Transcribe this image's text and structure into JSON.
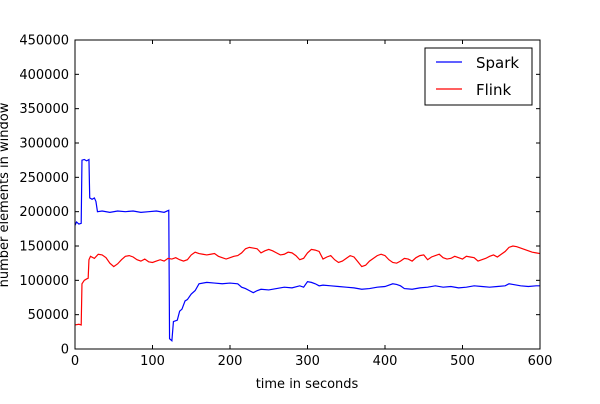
{
  "chart_data": {
    "type": "line",
    "title": "",
    "xlabel": "time in seconds",
    "ylabel": "number elements in window",
    "xlim": [
      0,
      600
    ],
    "ylim": [
      0,
      450000
    ],
    "xticks": [
      0,
      100,
      200,
      300,
      400,
      500,
      600
    ],
    "yticks": [
      0,
      50000,
      100000,
      150000,
      200000,
      250000,
      300000,
      350000,
      400000,
      450000
    ],
    "grid": false,
    "legend_position": "top-right",
    "series": [
      {
        "name": "Spark",
        "color": "#0000ff",
        "points": [
          [
            0,
            180000
          ],
          [
            2,
            185000
          ],
          [
            5,
            182000
          ],
          [
            8,
            183000
          ],
          [
            9,
            275000
          ],
          [
            12,
            276000
          ],
          [
            15,
            274000
          ],
          [
            18,
            276000
          ],
          [
            19,
            220000
          ],
          [
            22,
            218000
          ],
          [
            25,
            220000
          ],
          [
            27,
            215000
          ],
          [
            29,
            200000
          ],
          [
            35,
            201000
          ],
          [
            45,
            199000
          ],
          [
            55,
            201000
          ],
          [
            65,
            200000
          ],
          [
            75,
            201000
          ],
          [
            85,
            199000
          ],
          [
            95,
            200000
          ],
          [
            105,
            201000
          ],
          [
            115,
            199000
          ],
          [
            121,
            202000
          ],
          [
            122,
            15000
          ],
          [
            125,
            12000
          ],
          [
            127,
            40000
          ],
          [
            132,
            42000
          ],
          [
            135,
            55000
          ],
          [
            138,
            58000
          ],
          [
            142,
            70000
          ],
          [
            145,
            72000
          ],
          [
            150,
            80000
          ],
          [
            155,
            85000
          ],
          [
            160,
            95000
          ],
          [
            170,
            97000
          ],
          [
            180,
            96000
          ],
          [
            190,
            95000
          ],
          [
            200,
            96000
          ],
          [
            210,
            95000
          ],
          [
            215,
            90000
          ],
          [
            220,
            88000
          ],
          [
            225,
            85000
          ],
          [
            230,
            82000
          ],
          [
            235,
            85000
          ],
          [
            240,
            87000
          ],
          [
            250,
            86000
          ],
          [
            260,
            88000
          ],
          [
            270,
            90000
          ],
          [
            280,
            89000
          ],
          [
            290,
            92000
          ],
          [
            295,
            90000
          ],
          [
            300,
            98000
          ],
          [
            305,
            97000
          ],
          [
            310,
            95000
          ],
          [
            315,
            92000
          ],
          [
            320,
            93000
          ],
          [
            330,
            92000
          ],
          [
            340,
            91000
          ],
          [
            350,
            90000
          ],
          [
            360,
            89000
          ],
          [
            370,
            87000
          ],
          [
            380,
            88000
          ],
          [
            390,
            90000
          ],
          [
            400,
            91000
          ],
          [
            410,
            95000
          ],
          [
            415,
            94000
          ],
          [
            420,
            92000
          ],
          [
            425,
            88000
          ],
          [
            435,
            87000
          ],
          [
            445,
            89000
          ],
          [
            455,
            90000
          ],
          [
            465,
            92000
          ],
          [
            475,
            90000
          ],
          [
            485,
            91000
          ],
          [
            495,
            89000
          ],
          [
            505,
            90000
          ],
          [
            515,
            92000
          ],
          [
            525,
            91000
          ],
          [
            535,
            90000
          ],
          [
            545,
            91000
          ],
          [
            555,
            92000
          ],
          [
            560,
            95000
          ],
          [
            565,
            94000
          ],
          [
            575,
            92000
          ],
          [
            585,
            91000
          ],
          [
            595,
            92000
          ],
          [
            600,
            92000
          ]
        ]
      },
      {
        "name": "Flink",
        "color": "#ff0000",
        "points": [
          [
            0,
            35000
          ],
          [
            5,
            36000
          ],
          [
            8,
            35000
          ],
          [
            9,
            95000
          ],
          [
            12,
            100000
          ],
          [
            15,
            102000
          ],
          [
            17,
            103000
          ],
          [
            18,
            130000
          ],
          [
            20,
            135000
          ],
          [
            25,
            132000
          ],
          [
            30,
            138000
          ],
          [
            35,
            137000
          ],
          [
            40,
            133000
          ],
          [
            45,
            125000
          ],
          [
            50,
            120000
          ],
          [
            55,
            124000
          ],
          [
            60,
            130000
          ],
          [
            65,
            135000
          ],
          [
            70,
            136000
          ],
          [
            75,
            134000
          ],
          [
            80,
            130000
          ],
          [
            85,
            128000
          ],
          [
            90,
            131000
          ],
          [
            95,
            127000
          ],
          [
            100,
            126000
          ],
          [
            105,
            128000
          ],
          [
            110,
            130000
          ],
          [
            115,
            128000
          ],
          [
            120,
            132000
          ],
          [
            125,
            131000
          ],
          [
            130,
            133000
          ],
          [
            135,
            130000
          ],
          [
            140,
            128000
          ],
          [
            145,
            130000
          ],
          [
            150,
            137000
          ],
          [
            155,
            141000
          ],
          [
            160,
            139000
          ],
          [
            165,
            138000
          ],
          [
            170,
            137000
          ],
          [
            175,
            138000
          ],
          [
            180,
            139000
          ],
          [
            185,
            135000
          ],
          [
            190,
            133000
          ],
          [
            195,
            131000
          ],
          [
            200,
            133000
          ],
          [
            205,
            135000
          ],
          [
            210,
            136000
          ],
          [
            215,
            140000
          ],
          [
            220,
            146000
          ],
          [
            225,
            148000
          ],
          [
            230,
            147000
          ],
          [
            235,
            146000
          ],
          [
            240,
            140000
          ],
          [
            245,
            143000
          ],
          [
            250,
            145000
          ],
          [
            255,
            143000
          ],
          [
            260,
            140000
          ],
          [
            265,
            137000
          ],
          [
            270,
            138000
          ],
          [
            275,
            141000
          ],
          [
            280,
            140000
          ],
          [
            285,
            136000
          ],
          [
            290,
            130000
          ],
          [
            295,
            132000
          ],
          [
            300,
            140000
          ],
          [
            305,
            145000
          ],
          [
            310,
            144000
          ],
          [
            315,
            142000
          ],
          [
            320,
            131000
          ],
          [
            325,
            134000
          ],
          [
            330,
            136000
          ],
          [
            335,
            130000
          ],
          [
            340,
            126000
          ],
          [
            345,
            128000
          ],
          [
            350,
            132000
          ],
          [
            355,
            136000
          ],
          [
            360,
            134000
          ],
          [
            365,
            127000
          ],
          [
            370,
            120000
          ],
          [
            375,
            122000
          ],
          [
            380,
            128000
          ],
          [
            385,
            132000
          ],
          [
            390,
            136000
          ],
          [
            395,
            138000
          ],
          [
            400,
            136000
          ],
          [
            405,
            130000
          ],
          [
            410,
            126000
          ],
          [
            415,
            125000
          ],
          [
            420,
            128000
          ],
          [
            425,
            132000
          ],
          [
            430,
            131000
          ],
          [
            435,
            128000
          ],
          [
            440,
            133000
          ],
          [
            445,
            136000
          ],
          [
            450,
            137000
          ],
          [
            455,
            130000
          ],
          [
            460,
            134000
          ],
          [
            465,
            136000
          ],
          [
            470,
            138000
          ],
          [
            475,
            133000
          ],
          [
            480,
            131000
          ],
          [
            485,
            132000
          ],
          [
            490,
            135000
          ],
          [
            495,
            133000
          ],
          [
            500,
            131000
          ],
          [
            505,
            135000
          ],
          [
            510,
            134000
          ],
          [
            515,
            133000
          ],
          [
            520,
            128000
          ],
          [
            525,
            130000
          ],
          [
            530,
            132000
          ],
          [
            535,
            135000
          ],
          [
            540,
            137000
          ],
          [
            545,
            134000
          ],
          [
            550,
            138000
          ],
          [
            555,
            142000
          ],
          [
            560,
            148000
          ],
          [
            565,
            150000
          ],
          [
            570,
            149000
          ],
          [
            575,
            147000
          ],
          [
            580,
            145000
          ],
          [
            585,
            143000
          ],
          [
            590,
            141000
          ],
          [
            595,
            140000
          ],
          [
            600,
            139000
          ]
        ]
      }
    ]
  }
}
